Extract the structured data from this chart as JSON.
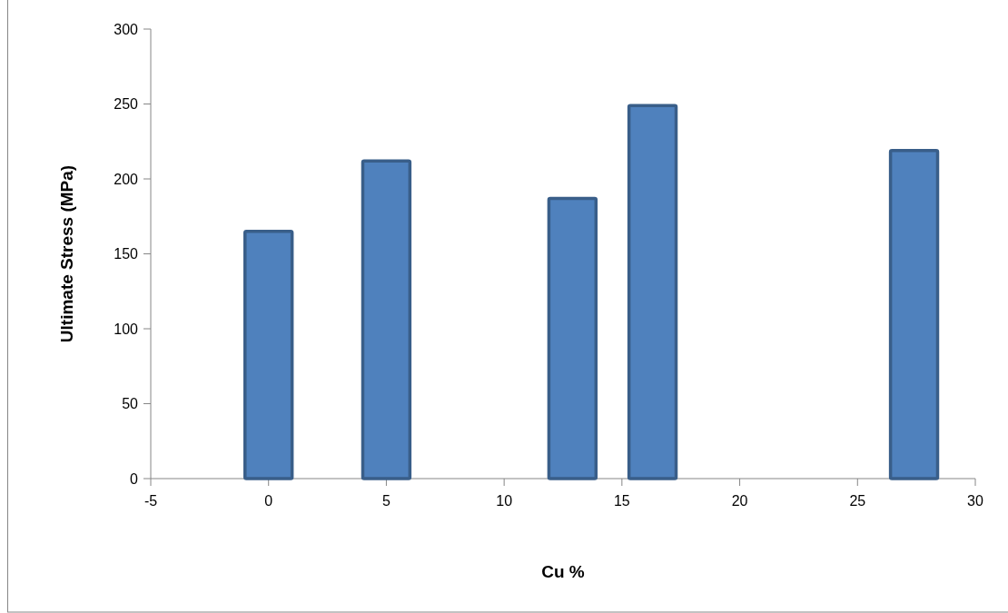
{
  "chart_data": {
    "type": "bar",
    "xlabel": "Cu %",
    "ylabel": "Ultimate Stress (MPa)",
    "x": [
      0,
      5,
      12.9,
      16.3,
      27.4
    ],
    "values": [
      165,
      212,
      187,
      249,
      219
    ],
    "color": "#4f81bd",
    "xlim": [
      -5,
      30
    ],
    "xticks": [
      -5,
      0,
      5,
      10,
      15,
      20,
      25,
      30
    ],
    "ylim": [
      0,
      300
    ],
    "yticks": [
      0,
      50,
      100,
      150,
      200,
      250,
      300
    ],
    "grid": false
  }
}
